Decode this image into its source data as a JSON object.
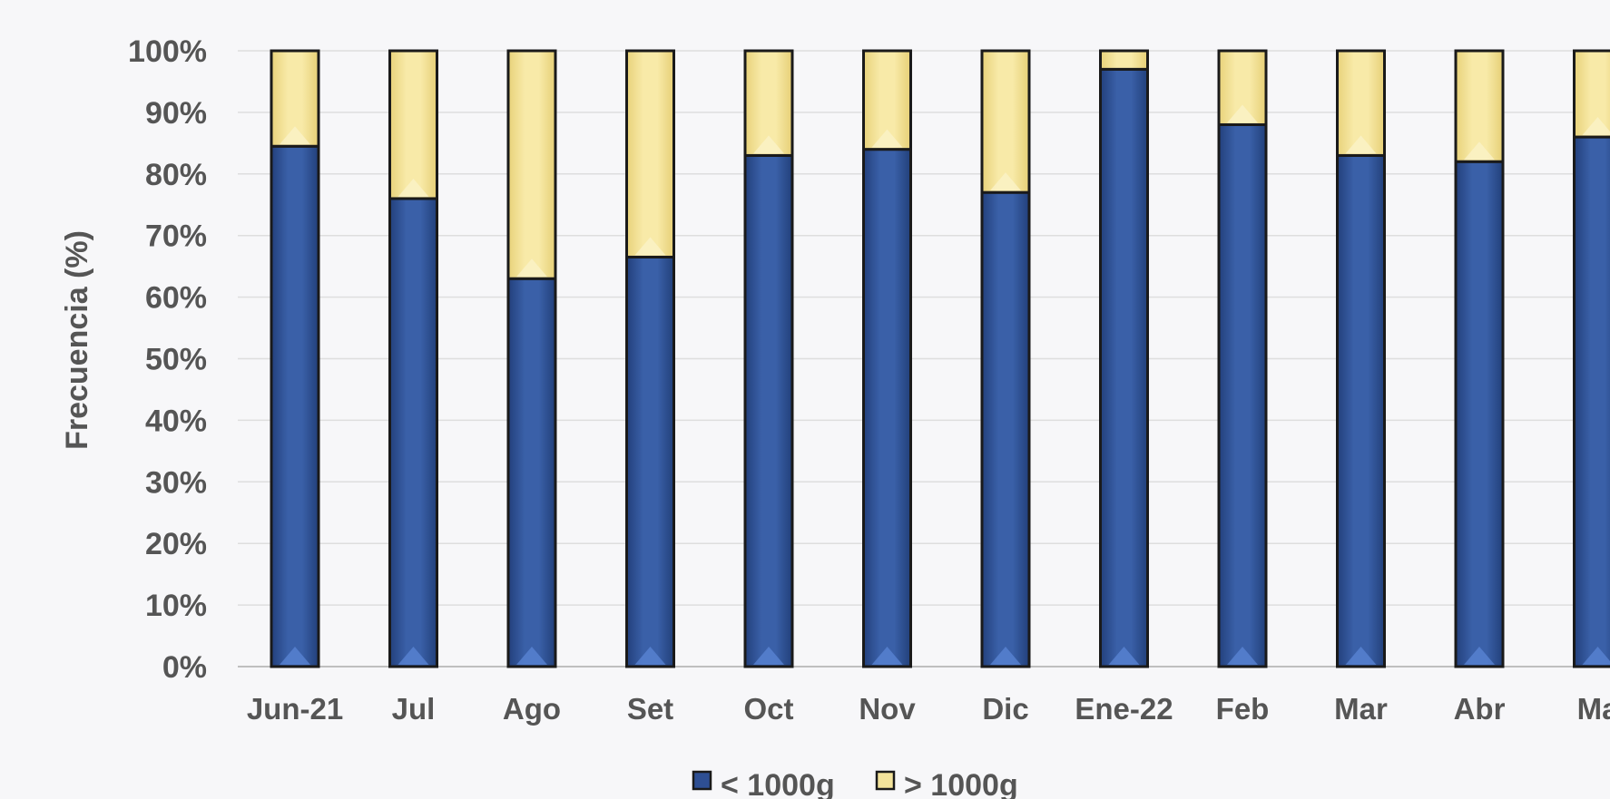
{
  "chart_data": {
    "type": "bar",
    "stacked": true,
    "categories": [
      "Jun-21",
      "Jul",
      "Ago",
      "Set",
      "Oct",
      "Nov",
      "Dic",
      "Ene-22",
      "Feb",
      "Mar",
      "Abr",
      "Ma"
    ],
    "series": [
      {
        "name": "< 1000g",
        "color": "#2e4f93",
        "values": [
          84.5,
          76,
          63,
          66.5,
          83,
          84,
          77,
          97,
          88,
          83,
          82,
          86
        ]
      },
      {
        "name": "> 1000g",
        "color": "#f3e39b",
        "values": [
          15.5,
          24,
          37,
          33.5,
          17,
          16,
          23,
          3,
          12,
          17,
          18,
          14
        ]
      }
    ],
    "ylabel": "Frecuencia (%)",
    "xlabel": "",
    "ylim": [
      0,
      100
    ],
    "yticks": [
      "0%",
      "10%",
      "20%",
      "30%",
      "40%",
      "50%",
      "60%",
      "70%",
      "80%",
      "90%",
      "100%"
    ],
    "grid": true,
    "legend_position": "bottom"
  }
}
